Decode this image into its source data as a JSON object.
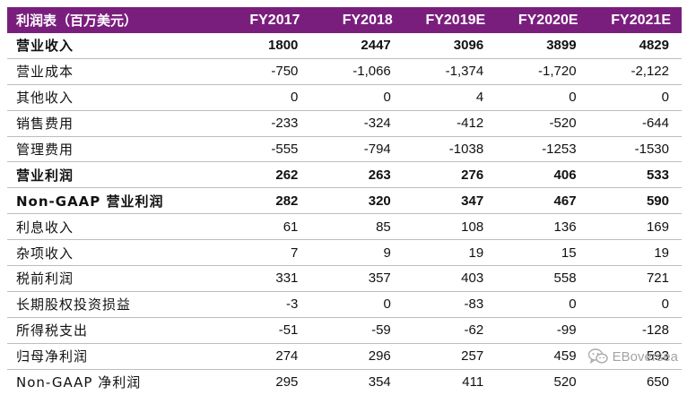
{
  "table": {
    "title": "利润表（百万美元）",
    "columns": [
      "FY2017",
      "FY2018",
      "FY2019E",
      "FY2020E",
      "FY2021E"
    ],
    "rows": [
      {
        "label": "营业收入",
        "bold": true,
        "values": [
          "1800",
          "2447",
          "3096",
          "3899",
          "4829"
        ]
      },
      {
        "label": "营业成本",
        "bold": false,
        "values": [
          "-750",
          "-1,066",
          "-1,374",
          "-1,720",
          "-2,122"
        ]
      },
      {
        "label": "其他收入",
        "bold": false,
        "values": [
          "0",
          "0",
          "4",
          "0",
          "0"
        ]
      },
      {
        "label": "销售费用",
        "bold": false,
        "values": [
          "-233",
          "-324",
          "-412",
          "-520",
          "-644"
        ]
      },
      {
        "label": "管理费用",
        "bold": false,
        "values": [
          "-555",
          "-794",
          "-1038",
          "-1253",
          "-1530"
        ]
      },
      {
        "label": "营业利润",
        "bold": true,
        "values": [
          "262",
          "263",
          "276",
          "406",
          "533"
        ]
      },
      {
        "label": "Non-GAAP 营业利润",
        "bold": true,
        "values": [
          "282",
          "320",
          "347",
          "467",
          "590"
        ]
      },
      {
        "label": "利息收入",
        "bold": false,
        "values": [
          "61",
          "85",
          "108",
          "136",
          "169"
        ]
      },
      {
        "label": "杂项收入",
        "bold": false,
        "values": [
          "7",
          "9",
          "19",
          "15",
          "19"
        ]
      },
      {
        "label": "税前利润",
        "bold": false,
        "values": [
          "331",
          "357",
          "403",
          "558",
          "721"
        ]
      },
      {
        "label": "长期股权投资损益",
        "bold": false,
        "values": [
          "-3",
          "0",
          "-83",
          "0",
          "0"
        ]
      },
      {
        "label": "所得税支出",
        "bold": false,
        "values": [
          "-51",
          "-59",
          "-62",
          "-99",
          "-128"
        ]
      },
      {
        "label": "归母净利润",
        "bold": false,
        "values": [
          "274",
          "296",
          "257",
          "459",
          "593"
        ]
      },
      {
        "label": "Non-GAAP 净利润",
        "bold": false,
        "values": [
          "295",
          "354",
          "411",
          "520",
          "650"
        ]
      }
    ]
  },
  "watermark": {
    "text": "EBoversea",
    "icon": "wechat-icon"
  },
  "colors": {
    "header_bg": "#7a1e7e",
    "header_text": "#ffffff",
    "row_divider": "#bdbdbd"
  }
}
